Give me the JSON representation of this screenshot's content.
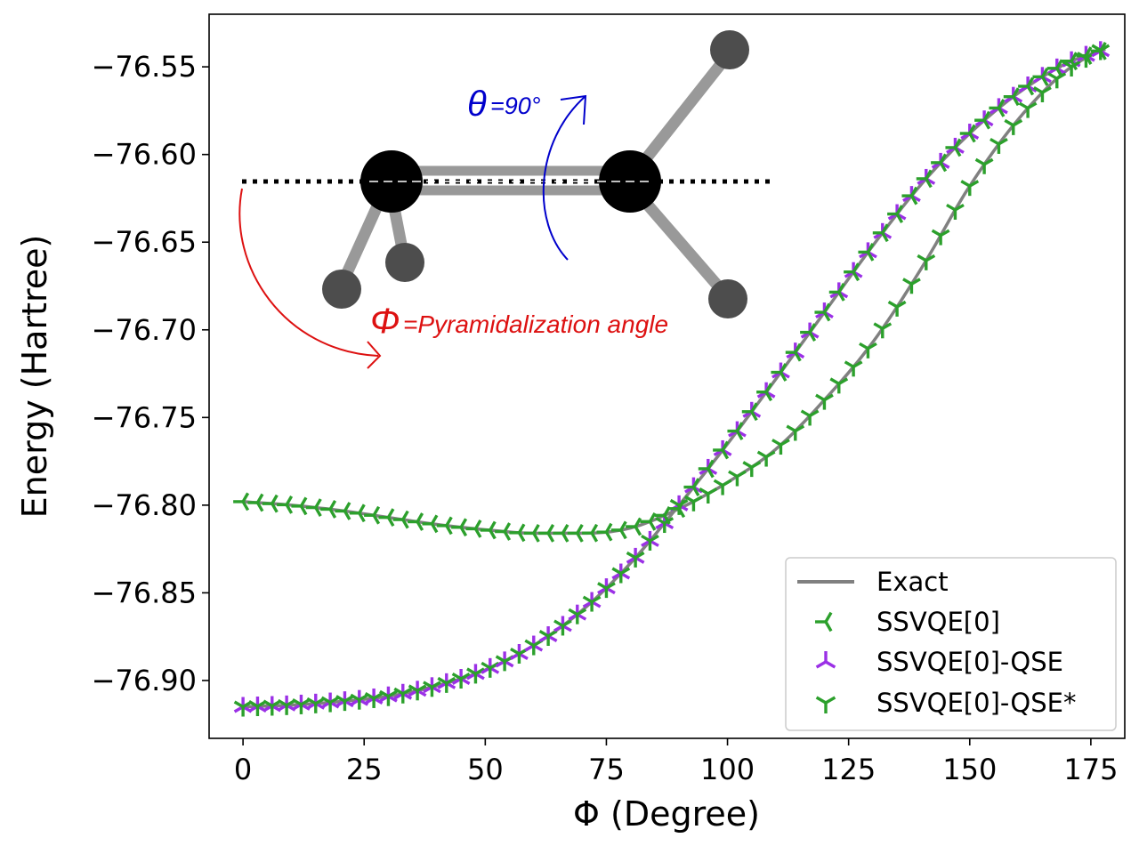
{
  "chart_data": {
    "type": "line",
    "xlabel": "Φ (Degree)",
    "ylabel": "Energy (Hartree)",
    "xlim": [
      -7,
      182
    ],
    "ylim": [
      -76.933,
      -76.52
    ],
    "x_ticks": [
      0,
      25,
      50,
      75,
      100,
      125,
      150,
      175
    ],
    "x_tick_labels": [
      "0",
      "25",
      "50",
      "75",
      "100",
      "125",
      "150",
      "175"
    ],
    "y_ticks": [
      -76.55,
      -76.6,
      -76.65,
      -76.7,
      -76.75,
      -76.8,
      -76.85,
      -76.9
    ],
    "y_tick_labels": [
      "−76.55",
      "−76.60",
      "−76.65",
      "−76.70",
      "−76.75",
      "−76.80",
      "−76.85",
      "−76.90"
    ],
    "grid": false,
    "legend_position": "bottom-right",
    "series": [
      {
        "name": "Exact",
        "style": "line",
        "color": "#808080"
      },
      {
        "name": "SSVQE[0]",
        "style": "marker",
        "marker": "tri_left",
        "color": "#2ca02c"
      },
      {
        "name": "SSVQE[0]-QSE",
        "style": "marker",
        "marker": "tri_up",
        "color": "#9b30e6"
      },
      {
        "name": "SSVQE[0]-QSE*",
        "style": "marker",
        "marker": "tri_down",
        "color": "#2ca02c"
      }
    ],
    "curves": {
      "lower_state": {
        "x": [
          0,
          10,
          20,
          30,
          40,
          50,
          60,
          70,
          80,
          90,
          100,
          110,
          120,
          130,
          140,
          150,
          160,
          170,
          178
        ],
        "y": [
          -76.915,
          -76.914,
          -76.912,
          -76.909,
          -76.903,
          -76.894,
          -76.88,
          -76.86,
          -76.833,
          -76.8,
          -76.765,
          -76.728,
          -76.69,
          -76.652,
          -76.617,
          -76.588,
          -76.565,
          -76.548,
          -76.54
        ]
      },
      "upper_branch": {
        "x": [
          0,
          10,
          20,
          30,
          40,
          50,
          60,
          70,
          80,
          90,
          100,
          110,
          120,
          130,
          140,
          150,
          160,
          170,
          178
        ],
        "y": [
          -76.798,
          -76.8,
          -76.803,
          -76.807,
          -76.811,
          -76.814,
          -76.816,
          -76.816,
          -76.813,
          -76.802,
          -76.787,
          -76.768,
          -76.74,
          -76.707,
          -76.665,
          -76.618,
          -76.58,
          -76.552,
          -76.539
        ]
      }
    },
    "inset": {
      "theta_symbol": "θ",
      "theta_value": "=90°",
      "phi_symbol": "Φ",
      "phi_text": "=Pyramidalization angle",
      "theta_color": "#0000cc",
      "phi_color": "#dd1111"
    }
  }
}
